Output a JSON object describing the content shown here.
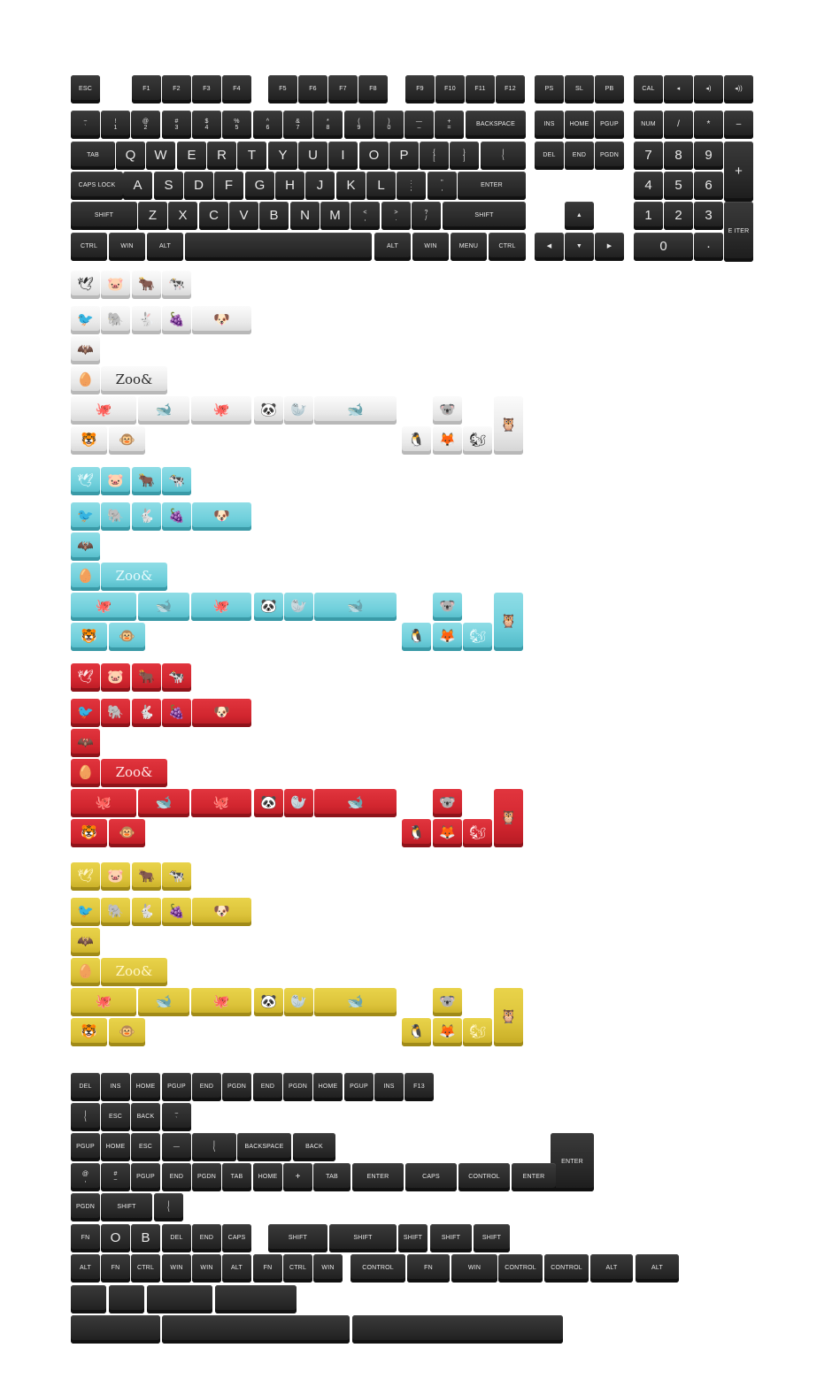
{
  "sections": {
    "main": "main-keyboard",
    "white": "white-novelty-set",
    "cyan": "cyan-novelty-set",
    "red": "red-novelty-set",
    "yellow": "yellow-novelty-set",
    "extras": "extra-modifiers"
  },
  "colors": {
    "black": "#2b2b2b",
    "white": "#ececec",
    "cyan": "#6fcfdb",
    "red": "#d2262f",
    "yellow": "#dcc33a"
  },
  "keyboard": [
    {
      "t": "ESC",
      "s": "small"
    },
    {
      "t": "F1",
      "s": "small"
    },
    {
      "t": "F2",
      "s": "small"
    },
    {
      "t": "F3",
      "s": "small"
    },
    {
      "t": "F4",
      "s": "small"
    },
    {
      "t": "F5",
      "s": "small"
    },
    {
      "t": "F6",
      "s": "small"
    },
    {
      "t": "F7",
      "s": "small"
    },
    {
      "t": "F8",
      "s": "small"
    },
    {
      "t": "F9",
      "s": "small"
    },
    {
      "t": "F10",
      "s": "small"
    },
    {
      "t": "F11",
      "s": "small"
    },
    {
      "t": "F12",
      "s": "small"
    },
    {
      "t": "PS",
      "s": "small"
    },
    {
      "t": "SL",
      "s": "small"
    },
    {
      "t": "PB",
      "s": "small"
    },
    {
      "t": "CAL",
      "s": "small"
    },
    {
      "t": "◂",
      "s": "small"
    },
    {
      "t": "◂)",
      "s": "small"
    },
    {
      "t": "◂))",
      "s": "small"
    },
    {
      "t": "~\n`",
      "s": "small"
    },
    {
      "t": "!\n1",
      "s": "small"
    },
    {
      "t": "@\n2",
      "s": "small"
    },
    {
      "t": "#\n3",
      "s": "small"
    },
    {
      "t": "$\n4",
      "s": "small"
    },
    {
      "t": "%\n5",
      "s": "small"
    },
    {
      "t": "^\n6",
      "s": "small"
    },
    {
      "t": "&\n7",
      "s": "small"
    },
    {
      "t": "*\n8",
      "s": "small"
    },
    {
      "t": "(\n9",
      "s": "small"
    },
    {
      "t": ")\n0",
      "s": "small"
    },
    {
      "t": "—\n–",
      "s": "small"
    },
    {
      "t": "+\n=",
      "s": "small"
    },
    {
      "t": "BACKSPACE",
      "s": "small"
    },
    {
      "t": "INS",
      "s": "small"
    },
    {
      "t": "HOME",
      "s": "small"
    },
    {
      "t": "PGUP",
      "s": "small"
    },
    {
      "t": "NUM",
      "s": "small"
    },
    {
      "t": "/",
      "s": "mid"
    },
    {
      "t": "*",
      "s": "mid"
    },
    {
      "t": "–",
      "s": "mid"
    },
    {
      "t": "TAB",
      "s": "small"
    },
    {
      "t": "Q",
      "s": "big"
    },
    {
      "t": "W",
      "s": "big"
    },
    {
      "t": "E",
      "s": "big"
    },
    {
      "t": "R",
      "s": "big"
    },
    {
      "t": "T",
      "s": "big"
    },
    {
      "t": "Y",
      "s": "big"
    },
    {
      "t": "U",
      "s": "big"
    },
    {
      "t": "I",
      "s": "big"
    },
    {
      "t": "O",
      "s": "big"
    },
    {
      "t": "P",
      "s": "big"
    },
    {
      "t": "{\n[",
      "s": "small"
    },
    {
      "t": "}\n]",
      "s": "small"
    },
    {
      "t": "|\n\\",
      "s": "small"
    },
    {
      "t": "DEL",
      "s": "small"
    },
    {
      "t": "END",
      "s": "small"
    },
    {
      "t": "PGDN",
      "s": "small"
    },
    {
      "t": "7",
      "s": "big"
    },
    {
      "t": "8",
      "s": "big"
    },
    {
      "t": "9",
      "s": "big"
    },
    {
      "t": "+",
      "s": "big"
    },
    {
      "t": "CAPS LOCK",
      "s": "small"
    },
    {
      "t": "A",
      "s": "big"
    },
    {
      "t": "S",
      "s": "big"
    },
    {
      "t": "D",
      "s": "big"
    },
    {
      "t": "F",
      "s": "big"
    },
    {
      "t": "G",
      "s": "big"
    },
    {
      "t": "H",
      "s": "big"
    },
    {
      "t": "J",
      "s": "big"
    },
    {
      "t": "K",
      "s": "big"
    },
    {
      "t": "L",
      "s": "big"
    },
    {
      "t": ":\n;",
      "s": "small"
    },
    {
      "t": "\"\n,",
      "s": "small"
    },
    {
      "t": "ENTER",
      "s": "small"
    },
    {
      "t": "4",
      "s": "big"
    },
    {
      "t": "5",
      "s": "big"
    },
    {
      "t": "6",
      "s": "big"
    },
    {
      "t": "SHIFT",
      "s": "small"
    },
    {
      "t": "Z",
      "s": "big"
    },
    {
      "t": "X",
      "s": "big"
    },
    {
      "t": "C",
      "s": "big"
    },
    {
      "t": "V",
      "s": "big"
    },
    {
      "t": "B",
      "s": "big"
    },
    {
      "t": "N",
      "s": "big"
    },
    {
      "t": "M",
      "s": "big"
    },
    {
      "t": "<\n,",
      "s": "small"
    },
    {
      "t": ">\n.",
      "s": "small"
    },
    {
      "t": "?\n/",
      "s": "small"
    },
    {
      "t": "SHIFT",
      "s": "small"
    },
    {
      "t": "▲",
      "s": "small"
    },
    {
      "t": "1",
      "s": "big"
    },
    {
      "t": "2",
      "s": "big"
    },
    {
      "t": "3",
      "s": "big"
    },
    {
      "t": "E ITER",
      "s": "small"
    },
    {
      "t": "CTRL",
      "s": "small"
    },
    {
      "t": "WIN",
      "s": "small"
    },
    {
      "t": "ALT",
      "s": "small"
    },
    {
      "t": "",
      "s": "small"
    },
    {
      "t": "ALT",
      "s": "small"
    },
    {
      "t": "WIN",
      "s": "small"
    },
    {
      "t": "MENU",
      "s": "small"
    },
    {
      "t": "CTRL",
      "s": "small"
    },
    {
      "t": "◀",
      "s": "small"
    },
    {
      "t": "▼",
      "s": "small"
    },
    {
      "t": "▶",
      "s": "small"
    },
    {
      "t": "0",
      "s": "big"
    },
    {
      "t": "·",
      "s": "big"
    }
  ],
  "novelty": [
    {
      "t": "🕊",
      "s": "icon"
    },
    {
      "t": "🐷",
      "s": "icon"
    },
    {
      "t": "🐂",
      "s": "icon"
    },
    {
      "t": "🐄",
      "s": "icon"
    },
    {
      "t": "🐦",
      "s": "icon"
    },
    {
      "t": "🐘",
      "s": "icon"
    },
    {
      "t": "🐇",
      "s": "icon"
    },
    {
      "t": "🍇",
      "s": "icon"
    },
    {
      "t": "🐶",
      "s": "icon"
    },
    {
      "t": "🦇",
      "s": "icon"
    },
    {
      "t": "🥚",
      "s": "icon"
    },
    {
      "t": "Zoo&",
      "s": "logo"
    },
    {
      "t": "🐙",
      "s": "icon"
    },
    {
      "t": "🐋",
      "s": "icon"
    },
    {
      "t": "🐙",
      "s": "icon"
    },
    {
      "t": "🐼",
      "s": "icon"
    },
    {
      "t": "🦭",
      "s": "icon"
    },
    {
      "t": "🐋",
      "s": "icon"
    },
    {
      "t": "🐨",
      "s": "icon"
    },
    {
      "t": "🐯",
      "s": "icon"
    },
    {
      "t": "🐵",
      "s": "icon"
    },
    {
      "t": "🐧",
      "s": "icon"
    },
    {
      "t": "🦊",
      "s": "icon"
    },
    {
      "t": "🐿",
      "s": "icon"
    },
    {
      "t": "🦉",
      "s": "icon"
    }
  ],
  "extras": [
    {
      "t": "DEL",
      "s": "small"
    },
    {
      "t": "INS",
      "s": "small"
    },
    {
      "t": "HOME",
      "s": "small"
    },
    {
      "t": "PGUP",
      "s": "small"
    },
    {
      "t": "END",
      "s": "small"
    },
    {
      "t": "PGDN",
      "s": "small"
    },
    {
      "t": "END",
      "s": "small"
    },
    {
      "t": "PGDN",
      "s": "small"
    },
    {
      "t": "HOME",
      "s": "small"
    },
    {
      "t": "PGUP",
      "s": "small"
    },
    {
      "t": "INS",
      "s": "small"
    },
    {
      "t": "F13",
      "s": "small"
    },
    {
      "t": "|\n\\",
      "s": "small"
    },
    {
      "t": "ESC",
      "s": "small"
    },
    {
      "t": "BACK",
      "s": "small"
    },
    {
      "t": "~\n`",
      "s": "small"
    },
    {
      "t": "PGUP",
      "s": "small"
    },
    {
      "t": "HOME",
      "s": "small"
    },
    {
      "t": "ESC",
      "s": "small"
    },
    {
      "t": "—",
      "s": "small"
    },
    {
      "t": "|\n\\",
      "s": "small"
    },
    {
      "t": "BACKSPACE",
      "s": "small"
    },
    {
      "t": "BACK",
      "s": "small"
    },
    {
      "t": "ENTER",
      "s": "small"
    },
    {
      "t": "@\n,",
      "s": "small"
    },
    {
      "t": "#\n~",
      "s": "small"
    },
    {
      "t": "PGUP",
      "s": "small"
    },
    {
      "t": "END",
      "s": "small"
    },
    {
      "t": "PGDN",
      "s": "small"
    },
    {
      "t": "TAB",
      "s": "small"
    },
    {
      "t": "HOME",
      "s": "small"
    },
    {
      "t": "+",
      "s": "mid"
    },
    {
      "t": "TAB",
      "s": "small"
    },
    {
      "t": "ENTER",
      "s": "small"
    },
    {
      "t": "CAPS",
      "s": "small"
    },
    {
      "t": "CONTROL",
      "s": "small"
    },
    {
      "t": "ENTER",
      "s": "small"
    },
    {
      "t": "PGDN",
      "s": "small"
    },
    {
      "t": "SHIFT",
      "s": "small"
    },
    {
      "t": "|\n\\",
      "s": "small"
    },
    {
      "t": "FN",
      "s": "small"
    },
    {
      "t": "O",
      "s": "big"
    },
    {
      "t": "B",
      "s": "big"
    },
    {
      "t": "DEL",
      "s": "small"
    },
    {
      "t": "END",
      "s": "small"
    },
    {
      "t": "CAPS",
      "s": "small"
    },
    {
      "t": "SHIFT",
      "s": "small"
    },
    {
      "t": "SHIFT",
      "s": "small"
    },
    {
      "t": "SHIFT",
      "s": "small"
    },
    {
      "t": "SHIFT",
      "s": "small"
    },
    {
      "t": "SHIFT",
      "s": "small"
    },
    {
      "t": "ALT",
      "s": "small"
    },
    {
      "t": "FN",
      "s": "small"
    },
    {
      "t": "CTRL",
      "s": "small"
    },
    {
      "t": "WIN",
      "s": "small"
    },
    {
      "t": "WIN",
      "s": "small"
    },
    {
      "t": "ALT",
      "s": "small"
    },
    {
      "t": "FN",
      "s": "small"
    },
    {
      "t": "CTRL",
      "s": "small"
    },
    {
      "t": "WIN",
      "s": "small"
    },
    {
      "t": "CONTROL",
      "s": "small"
    },
    {
      "t": "FN",
      "s": "small"
    },
    {
      "t": "WIN",
      "s": "small"
    },
    {
      "t": "CONTROL",
      "s": "small"
    },
    {
      "t": "CONTROL",
      "s": "small"
    },
    {
      "t": "ALT",
      "s": "small"
    },
    {
      "t": "ALT",
      "s": "small"
    },
    {
      "t": "",
      "s": "small"
    },
    {
      "t": "",
      "s": "small"
    },
    {
      "t": "",
      "s": "small"
    },
    {
      "t": "",
      "s": "small"
    },
    {
      "t": "",
      "s": "small"
    },
    {
      "t": "",
      "s": "small"
    },
    {
      "t": "",
      "s": "small"
    }
  ]
}
